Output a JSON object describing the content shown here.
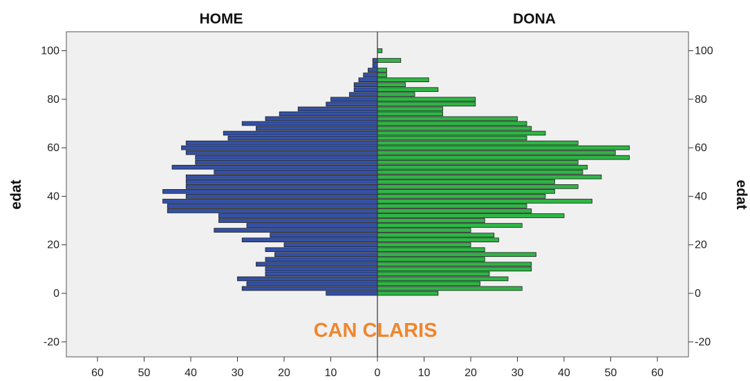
{
  "chart_data": {
    "type": "bar",
    "orientation": "horizontal-population-pyramid",
    "left_panel_title": "HOME",
    "right_panel_title": "DONA",
    "ylabel": "edat",
    "annotation": "CAN CLARIS",
    "xlim": [
      0,
      60
    ],
    "ylim": [
      -25,
      106
    ],
    "x_ticks_left": [
      60,
      50,
      40,
      30,
      20,
      10,
      0
    ],
    "x_ticks_right": [
      0,
      10,
      20,
      30,
      40,
      50,
      60
    ],
    "y_ticks": [
      100,
      80,
      60,
      40,
      20,
      0,
      -20
    ],
    "grid": false,
    "colors": {
      "background": "#f0f0f0",
      "home": "#3451a6",
      "dona": "#2fb545",
      "bar_edge": "#1a1a1a",
      "annotation": "#f0862d"
    },
    "series": [
      {
        "name": "HOME",
        "ages": [
          0,
          2,
          4,
          6,
          8,
          10,
          12,
          14,
          16,
          18,
          20,
          22,
          24,
          26,
          28,
          30,
          32,
          34,
          36,
          38,
          40,
          42,
          44,
          46,
          48,
          50,
          52,
          54,
          56,
          58,
          60,
          62,
          64,
          66,
          68,
          70,
          72,
          74,
          76,
          78,
          80,
          82,
          84,
          86,
          88,
          90,
          92,
          94,
          96,
          98,
          100
        ],
        "values": [
          11,
          29,
          28,
          30,
          24,
          24,
          26,
          24,
          22,
          24,
          20,
          29,
          23,
          35,
          28,
          34,
          34,
          45,
          45,
          46,
          41,
          46,
          41,
          41,
          41,
          35,
          44,
          39,
          39,
          41,
          42,
          41,
          32,
          33,
          26,
          29,
          24,
          21,
          17,
          11,
          10,
          6,
          5,
          5,
          4,
          3,
          2,
          1,
          1,
          0,
          0
        ]
      },
      {
        "name": "DONA",
        "ages": [
          0,
          2,
          4,
          6,
          8,
          10,
          12,
          14,
          16,
          18,
          20,
          22,
          24,
          26,
          28,
          30,
          32,
          34,
          36,
          38,
          40,
          42,
          44,
          46,
          48,
          50,
          52,
          54,
          56,
          58,
          60,
          62,
          64,
          66,
          68,
          70,
          72,
          74,
          76,
          78,
          80,
          82,
          84,
          86,
          88,
          90,
          92,
          94,
          96,
          98,
          100
        ],
        "values": [
          13,
          31,
          22,
          28,
          24,
          33,
          33,
          23,
          34,
          23,
          20,
          26,
          25,
          20,
          31,
          23,
          40,
          33,
          32,
          46,
          36,
          38,
          43,
          38,
          48,
          44,
          45,
          43,
          54,
          51,
          54,
          43,
          32,
          36,
          33,
          32,
          30,
          14,
          14,
          21,
          21,
          8,
          13,
          6,
          11,
          2,
          2,
          0,
          5,
          0,
          1
        ]
      }
    ]
  }
}
